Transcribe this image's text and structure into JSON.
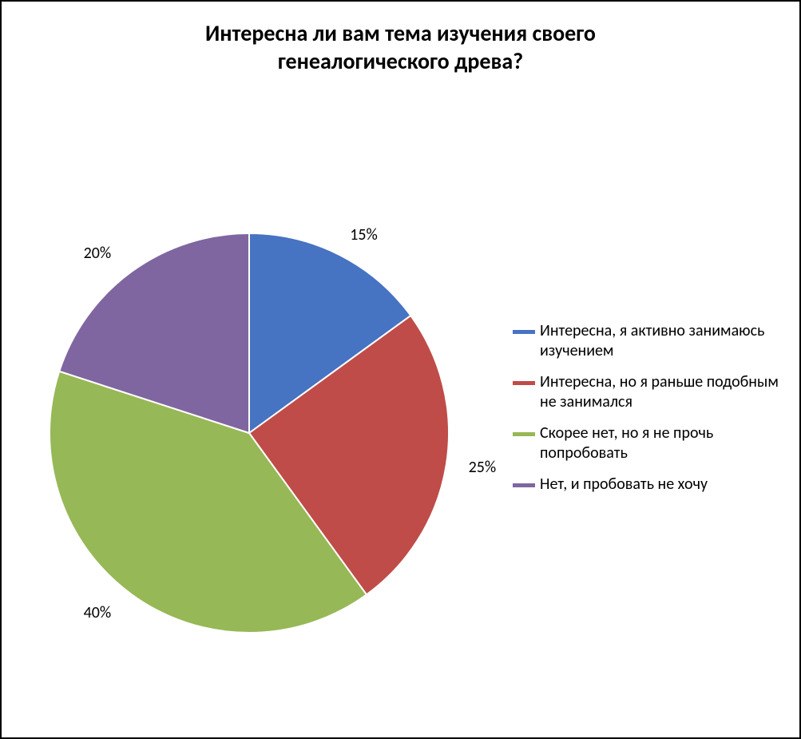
{
  "chart": {
    "type": "pie",
    "title_line1": "Интересна ли вам тема изучения своего",
    "title_line2": "генеалогического древа?",
    "title_fontsize": 28,
    "title_color": "#000000",
    "background_color": "#ffffff",
    "border_color": "#000000",
    "slice_border_color": "#ffffff",
    "pie_radius": 250,
    "slices": [
      {
        "label": "Интересна, я активно занимаюсь изучением",
        "value": 15,
        "pct_text": "15%",
        "color": "#4673c2",
        "color_dark": "#2f5597"
      },
      {
        "label": "Интересна, но я раньше подобным не занимался",
        "value": 25,
        "pct_text": "25%",
        "color": "#bf4c48",
        "color_dark": "#8f3230"
      },
      {
        "label": "Скорее нет, но я не прочь попробовать",
        "value": 40,
        "pct_text": "40%",
        "color": "#97b856",
        "color_dark": "#6d8c35"
      },
      {
        "label": "Нет, и пробовать не хочу",
        "value": 20,
        "pct_text": "20%",
        "color": "#7f66a0",
        "color_dark": "#5d487c"
      }
    ],
    "legend": {
      "fontsize": 20,
      "text_color": "#000000",
      "swatch_height": 5
    },
    "data_label": {
      "fontsize": 20,
      "color": "#000000"
    }
  }
}
